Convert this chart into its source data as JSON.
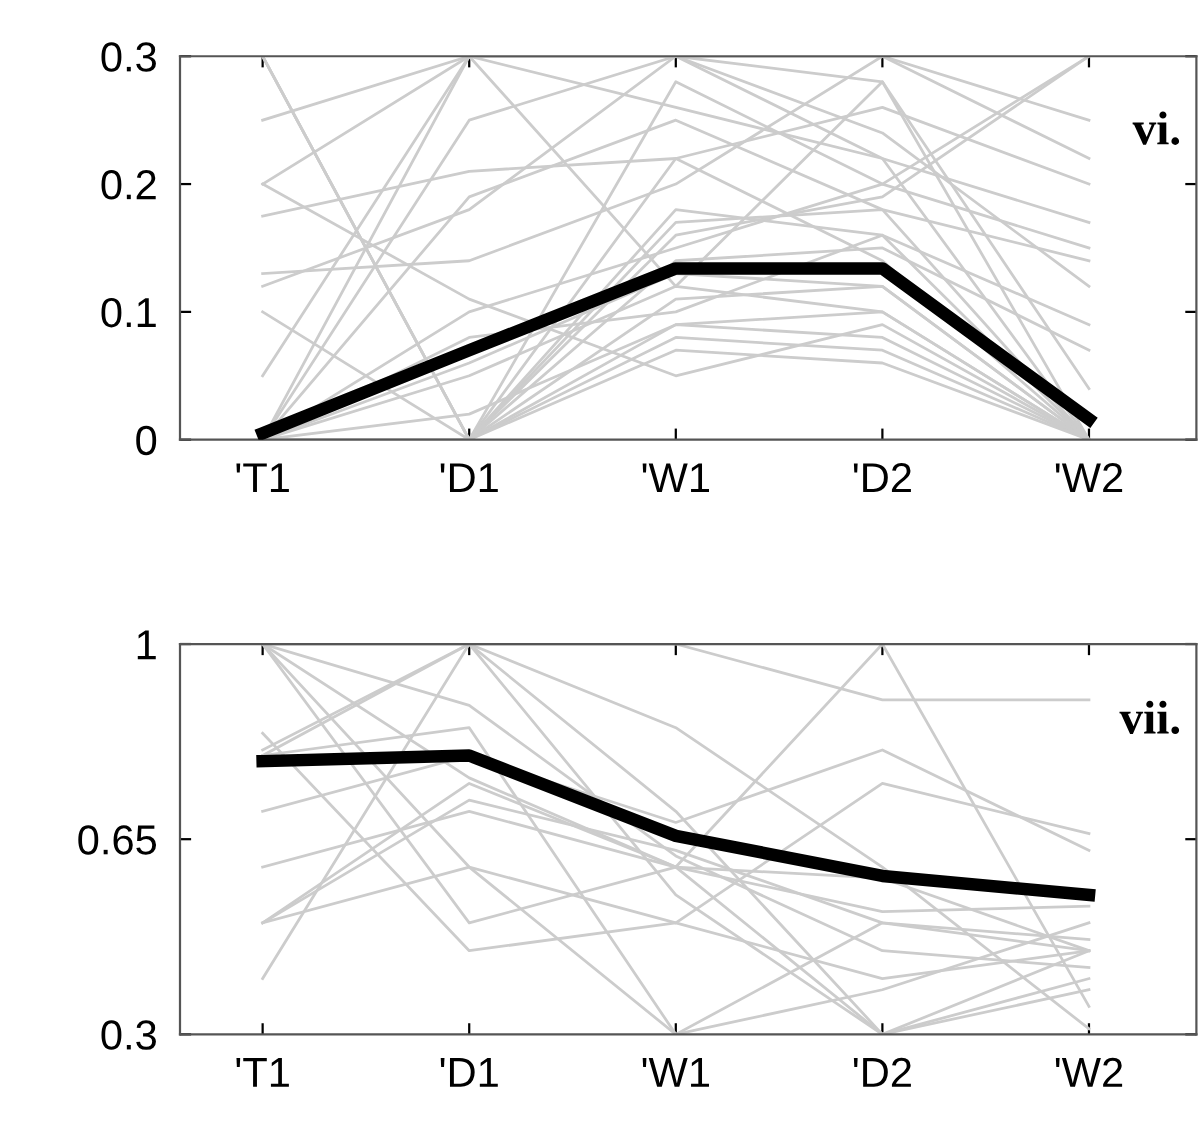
{
  "chart_data": [
    {
      "type": "line",
      "categories": [
        "'T1",
        "'D1",
        "'W1",
        "'D2",
        "'W2"
      ],
      "ylim": [
        0,
        0.3
      ],
      "yticks": [
        0,
        0.1,
        0.2,
        0.3
      ],
      "grid": false,
      "legend": false,
      "annotations": [
        "vi."
      ],
      "series": [
        {
          "color": "#cccccc",
          "values": [
            0.25,
            0.3,
            0.3,
            0.3,
            0.25
          ]
        },
        {
          "color": "#cccccc",
          "values": [
            0.2,
            0.3,
            0.26,
            0.22,
            0.17
          ]
        },
        {
          "color": "#cccccc",
          "values": [
            0.175,
            0.21,
            0.22,
            0.26,
            0.2
          ]
        },
        {
          "color": "#cccccc",
          "values": [
            0.13,
            0.14,
            0.2,
            0.3,
            0.22
          ]
        },
        {
          "color": "#cccccc",
          "values": [
            0,
            0.3,
            0.3,
            0.28,
            0
          ]
        },
        {
          "color": "#cccccc",
          "values": [
            0,
            0.25,
            0.3,
            0.22,
            0
          ]
        },
        {
          "color": "#cccccc",
          "values": [
            0,
            0.19,
            0.25,
            0.18,
            0.14
          ]
        },
        {
          "color": "#cccccc",
          "values": [
            0,
            0.1,
            0.15,
            0.2,
            0.15
          ]
        },
        {
          "color": "#cccccc",
          "values": [
            0,
            0.05,
            0.12,
            0.1,
            0
          ]
        },
        {
          "color": "#cccccc",
          "values": [
            0,
            0.02,
            0.09,
            0.08,
            0
          ]
        },
        {
          "color": "#cccccc",
          "values": [
            0.3,
            0,
            0.18,
            0.16,
            0
          ]
        },
        {
          "color": "#cccccc",
          "values": [
            0.3,
            0,
            0.16,
            0.19,
            0.3
          ]
        },
        {
          "color": "#cccccc",
          "values": [
            0.3,
            0,
            0.11,
            0.12,
            0
          ]
        },
        {
          "color": "#cccccc",
          "values": [
            0.1,
            0,
            0.09,
            0.1,
            0
          ]
        },
        {
          "color": "#cccccc",
          "values": [
            0,
            0,
            0.08,
            0.07,
            0
          ]
        },
        {
          "color": "#cccccc",
          "values": [
            0,
            0,
            0.14,
            0.15,
            0.07
          ]
        },
        {
          "color": "#cccccc",
          "values": [
            0,
            0,
            0.22,
            0.14,
            0
          ]
        },
        {
          "color": "#cccccc",
          "values": [
            0,
            0,
            0.17,
            0.18,
            0
          ]
        },
        {
          "color": "#cccccc",
          "values": [
            0.12,
            0.18,
            0.3,
            0.24,
            0.12
          ]
        },
        {
          "color": "#cccccc",
          "values": [
            0,
            0.08,
            0.1,
            0.16,
            0.09
          ]
        },
        {
          "color": "#cccccc",
          "values": [
            0,
            0,
            0.28,
            0.2,
            0.3
          ]
        },
        {
          "color": "#cccccc",
          "values": [
            0,
            0.06,
            0.13,
            0.12,
            0
          ]
        },
        {
          "color": "#cccccc",
          "values": [
            0.2,
            0.11,
            0.05,
            0.09,
            0
          ]
        },
        {
          "color": "#cccccc",
          "values": [
            0,
            0,
            0.07,
            0.06,
            0
          ]
        },
        {
          "color": "#cccccc",
          "values": [
            0.05,
            0.3,
            0.12,
            0.28,
            0.04
          ]
        },
        {
          "color": "#000000",
          "values": [
            0.005,
            0.07,
            0.134,
            0.134,
            0.016
          ]
        }
      ]
    },
    {
      "type": "line",
      "categories": [
        "'T1",
        "'D1",
        "'W1",
        "'D2",
        "'W2"
      ],
      "ylim": [
        0.3,
        1
      ],
      "yticks": [
        0.3,
        0.65,
        1
      ],
      "grid": false,
      "legend": false,
      "annotations": [
        "vii."
      ],
      "series": [
        {
          "color": "#cccccc",
          "values": [
            1.0,
            0.89,
            0.62,
            0.45,
            0.42
          ]
        },
        {
          "color": "#cccccc",
          "values": [
            1.0,
            0.76,
            0.6,
            0.3,
            0.45
          ]
        },
        {
          "color": "#cccccc",
          "values": [
            0.81,
            1.0,
            0.85,
            0.6,
            0.31
          ]
        },
        {
          "color": "#cccccc",
          "values": [
            0.5,
            0.75,
            0.6,
            0.58,
            0.45
          ]
        },
        {
          "color": "#cccccc",
          "values": [
            0.5,
            0.72,
            0.63,
            0.5,
            0.47
          ]
        },
        {
          "color": "#cccccc",
          "values": [
            0.4,
            1.0,
            0.55,
            0.3,
            0.38
          ]
        },
        {
          "color": "#cccccc",
          "values": [
            0.5,
            0.6,
            0.5,
            0.75,
            0.66
          ]
        },
        {
          "color": "#cccccc",
          "values": [
            1.0,
            0.5,
            0.6,
            0.52,
            0.53
          ]
        },
        {
          "color": "#cccccc",
          "values": [
            0.84,
            0.45,
            0.5,
            0.4,
            0.45
          ]
        },
        {
          "color": "#cccccc",
          "values": [
            1.0,
            1.0,
            0.7,
            0.3,
            0.4
          ]
        },
        {
          "color": "#cccccc",
          "values": [
            0.8,
            1.0,
            1.0,
            0.9,
            0.9
          ]
        },
        {
          "color": "#cccccc",
          "values": [
            1.0,
            0.6,
            0.3,
            0.5,
            0.45
          ]
        },
        {
          "color": "#cccccc",
          "values": [
            0.7,
            0.8,
            0.68,
            0.81,
            0.63
          ]
        },
        {
          "color": "#cccccc",
          "values": [
            0.6,
            0.7,
            0.6,
            1.0,
            0.35
          ]
        },
        {
          "color": "#cccccc",
          "values": [
            0.8,
            0.85,
            0.3,
            0.38,
            0.5
          ]
        },
        {
          "color": "#000000",
          "values": [
            0.79,
            0.8,
            0.656,
            0.584,
            0.55
          ]
        }
      ]
    }
  ]
}
